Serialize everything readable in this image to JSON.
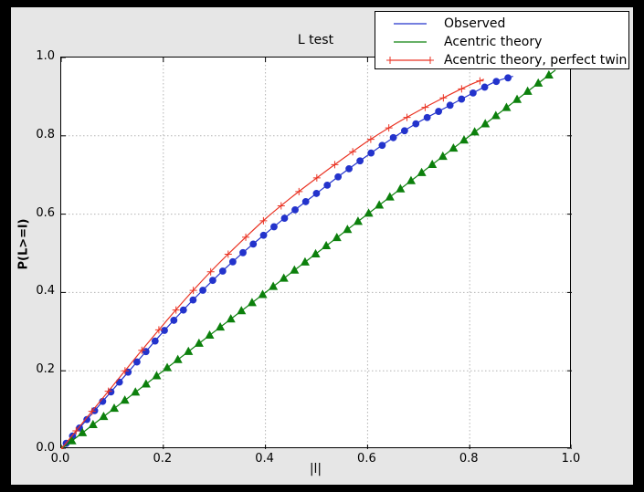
{
  "window": {
    "background": "#000000",
    "figure_bg": "#e6e6e6",
    "plot_bg": "#ffffff",
    "frame_color": "#000000"
  },
  "chart_data": {
    "type": "line",
    "title": "L test",
    "xlabel": "|l|",
    "ylabel": "P(L>=l)",
    "xlim": [
      0,
      1
    ],
    "ylim": [
      0,
      1
    ],
    "tick_positions": [
      0,
      0.2,
      0.4,
      0.6,
      0.8,
      1
    ],
    "xtick_labels": [
      "0.0",
      "0.2",
      "0.4",
      "0.6",
      "0.8",
      "1.0"
    ],
    "ytick_labels": [
      "0.0",
      "0.2",
      "0.4",
      "0.6",
      "0.8",
      "1.0"
    ],
    "grid": {
      "positions": [
        0.2,
        0.4,
        0.6,
        0.8
      ],
      "color": "#b3b3b3",
      "style": "dotted"
    },
    "legend": {
      "position": "upper right"
    },
    "series": [
      {
        "name": "Observed",
        "color": "#2333cc",
        "marker": "circle",
        "x": [
          0,
          0.05,
          0.1,
          0.15,
          0.2,
          0.25,
          0.3,
          0.35,
          0.4,
          0.45,
          0.5,
          0.55,
          0.6,
          0.65,
          0.7,
          0.75,
          0.8,
          0.85,
          0.9,
          0.95,
          1.0
        ],
        "y": [
          0,
          0.075,
          0.15,
          0.225,
          0.3,
          0.37,
          0.435,
          0.495,
          0.55,
          0.603,
          0.653,
          0.703,
          0.75,
          0.795,
          0.835,
          0.87,
          0.905,
          0.938,
          0.958,
          0.974,
          0.985
        ],
        "draw_max": 0.885,
        "marker_layout": {
          "n": 46,
          "max": 0.875,
          "power": 1.18
        }
      },
      {
        "name": "Acentric theory",
        "color": "#0c800c",
        "marker": "triangle",
        "x": [
          0,
          1
        ],
        "y": [
          0,
          1
        ],
        "draw_max": 0.968,
        "marker_layout": {
          "n": 47,
          "max": 0.955,
          "power": 1.0
        }
      },
      {
        "name": "Acentric theory, perfect twin",
        "color": "#ea3323",
        "marker": "plus",
        "x": [
          0,
          0.05,
          0.1,
          0.15,
          0.2,
          0.25,
          0.3,
          0.35,
          0.4,
          0.45,
          0.5,
          0.55,
          0.6,
          0.65,
          0.7,
          0.75,
          0.8,
          0.85,
          0.9,
          0.95,
          1.0
        ],
        "y": [
          0,
          0.08,
          0.16,
          0.24,
          0.318,
          0.393,
          0.463,
          0.527,
          0.588,
          0.642,
          0.692,
          0.74,
          0.786,
          0.827,
          0.864,
          0.898,
          0.93,
          0.956,
          0.974,
          0.988,
          1.0
        ],
        "draw_max": 0.828,
        "marker_layout": {
          "n": 25,
          "max": 0.82,
          "power": 1.05
        }
      }
    ]
  }
}
